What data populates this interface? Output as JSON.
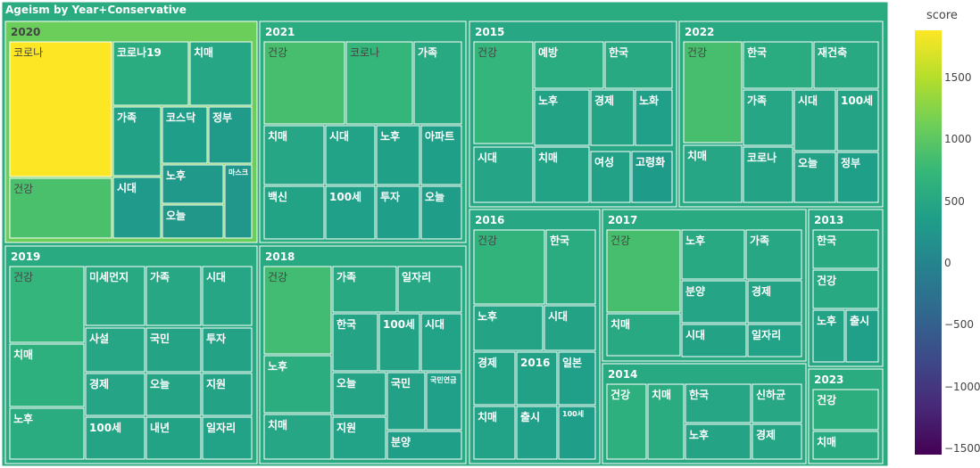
{
  "chart_data": {
    "type": "treemap",
    "title": "Ageism by Year+Conservative",
    "colorbar": {
      "title": "score",
      "range": [
        -1550,
        1880
      ],
      "ticks": [
        "1500",
        "1000",
        "500",
        "0",
        "−500",
        "−1000",
        "−1500"
      ],
      "tick_values": [
        1500,
        1000,
        500,
        0,
        -500,
        -1000,
        -1500
      ],
      "colorscale": [
        "#440154",
        "#482878",
        "#3e4989",
        "#31688e",
        "#26828e",
        "#1f9e89",
        "#35b779",
        "#6ece58",
        "#b5de2b",
        "#fde725"
      ]
    },
    "groups": [
      {
        "label": "2020",
        "score": 1100,
        "children": [
          {
            "label": "코로나",
            "score": 1880
          },
          {
            "label": "건강",
            "score": 880
          },
          {
            "label": "코로나19",
            "score": 560
          },
          {
            "label": "치매",
            "score": 480
          },
          {
            "label": "가족",
            "score": 400
          },
          {
            "label": "코스닥",
            "score": 350
          },
          {
            "label": "정부",
            "score": 320
          },
          {
            "label": "시대",
            "score": 300
          },
          {
            "label": "노후",
            "score": 280
          },
          {
            "label": "오늘",
            "score": 260
          },
          {
            "label": "마스크",
            "score": 250
          }
        ]
      },
      {
        "label": "2021",
        "score": 560,
        "children": [
          {
            "label": "건강",
            "score": 860
          },
          {
            "label": "코로나",
            "score": 720
          },
          {
            "label": "가족",
            "score": 520
          },
          {
            "label": "치매",
            "score": 470
          },
          {
            "label": "시대",
            "score": 410
          },
          {
            "label": "노후",
            "score": 390
          },
          {
            "label": "아파트",
            "score": 370
          },
          {
            "label": "백신",
            "score": 430
          },
          {
            "label": "100세",
            "score": 380
          },
          {
            "label": "투자",
            "score": 350
          },
          {
            "label": "오늘",
            "score": 340
          }
        ]
      },
      {
        "label": "2015",
        "score": 500,
        "children": [
          {
            "label": "건강",
            "score": 700
          },
          {
            "label": "예방",
            "score": 560
          },
          {
            "label": "한국",
            "score": 520
          },
          {
            "label": "노후",
            "score": 420
          },
          {
            "label": "경제",
            "score": 440
          },
          {
            "label": "노화",
            "score": 380
          },
          {
            "label": "시대",
            "score": 460
          },
          {
            "label": "치매",
            "score": 430
          },
          {
            "label": "여성",
            "score": 400
          },
          {
            "label": "고령화",
            "score": 330
          }
        ]
      },
      {
        "label": "2022",
        "score": 520,
        "children": [
          {
            "label": "건강",
            "score": 860
          },
          {
            "label": "한국",
            "score": 560
          },
          {
            "label": "재건축",
            "score": 520
          },
          {
            "label": "가족",
            "score": 480
          },
          {
            "label": "시대",
            "score": 450
          },
          {
            "label": "100세",
            "score": 440
          },
          {
            "label": "치매",
            "score": 470
          },
          {
            "label": "코로나",
            "score": 420
          },
          {
            "label": "오늘",
            "score": 400
          },
          {
            "label": "정부",
            "score": 370
          }
        ]
      },
      {
        "label": "2019",
        "score": 540,
        "children": [
          {
            "label": "건강",
            "score": 700
          },
          {
            "label": "미세먼지",
            "score": 520
          },
          {
            "label": "가족",
            "score": 500
          },
          {
            "label": "시대",
            "score": 480
          },
          {
            "label": "치매",
            "score": 620
          },
          {
            "label": "사설",
            "score": 470
          },
          {
            "label": "국민",
            "score": 440
          },
          {
            "label": "투자",
            "score": 420
          },
          {
            "label": "노후",
            "score": 560
          },
          {
            "label": "경제",
            "score": 460
          },
          {
            "label": "오늘",
            "score": 450
          },
          {
            "label": "지원",
            "score": 420
          },
          {
            "label": "100세",
            "score": 440
          },
          {
            "label": "내년",
            "score": 430
          },
          {
            "label": "일자리",
            "score": 410
          }
        ]
      },
      {
        "label": "2018",
        "score": 520,
        "children": [
          {
            "label": "건강",
            "score": 820
          },
          {
            "label": "가족",
            "score": 520
          },
          {
            "label": "일자리",
            "score": 490
          },
          {
            "label": "한국",
            "score": 450
          },
          {
            "label": "100세",
            "score": 420
          },
          {
            "label": "시대",
            "score": 410
          },
          {
            "label": "노후",
            "score": 580
          },
          {
            "label": "오늘",
            "score": 440
          },
          {
            "label": "국민",
            "score": 400
          },
          {
            "label": "국민연금",
            "score": 380
          },
          {
            "label": "치매",
            "score": 470
          },
          {
            "label": "지원",
            "score": 410
          },
          {
            "label": "분양",
            "score": 370
          }
        ]
      },
      {
        "label": "2016",
        "score": 500,
        "children": [
          {
            "label": "건강",
            "score": 680
          },
          {
            "label": "한국",
            "score": 560
          },
          {
            "label": "노후",
            "score": 450
          },
          {
            "label": "시대",
            "score": 420
          },
          {
            "label": "경제",
            "score": 430
          },
          {
            "label": "2016",
            "score": 400
          },
          {
            "label": "일본",
            "score": 380
          },
          {
            "label": "치매",
            "score": 410
          },
          {
            "label": "출시",
            "score": 380
          },
          {
            "label": "100세",
            "score": 360
          }
        ]
      },
      {
        "label": "2017",
        "score": 540,
        "children": [
          {
            "label": "건강",
            "score": 860
          },
          {
            "label": "노후",
            "score": 520
          },
          {
            "label": "가족",
            "score": 500
          },
          {
            "label": "분양",
            "score": 460
          },
          {
            "label": "경제",
            "score": 450
          },
          {
            "label": "치매",
            "score": 520
          },
          {
            "label": "시대",
            "score": 420
          },
          {
            "label": "일자리",
            "score": 410
          }
        ]
      },
      {
        "label": "2013",
        "score": 500,
        "children": [
          {
            "label": "한국",
            "score": 540
          },
          {
            "label": "건강",
            "score": 520
          },
          {
            "label": "노후",
            "score": 420
          },
          {
            "label": "출시",
            "score": 380
          }
        ]
      },
      {
        "label": "2014",
        "score": 520,
        "children": [
          {
            "label": "건강",
            "score": 620
          },
          {
            "label": "치매",
            "score": 560
          },
          {
            "label": "한국",
            "score": 480
          },
          {
            "label": "신하균",
            "score": 500
          },
          {
            "label": "노후",
            "score": 440
          },
          {
            "label": "경제",
            "score": 460
          }
        ]
      },
      {
        "label": "2023",
        "score": 560,
        "children": [
          {
            "label": "건강",
            "score": 600
          },
          {
            "label": "치매",
            "score": 540
          }
        ]
      }
    ]
  }
}
